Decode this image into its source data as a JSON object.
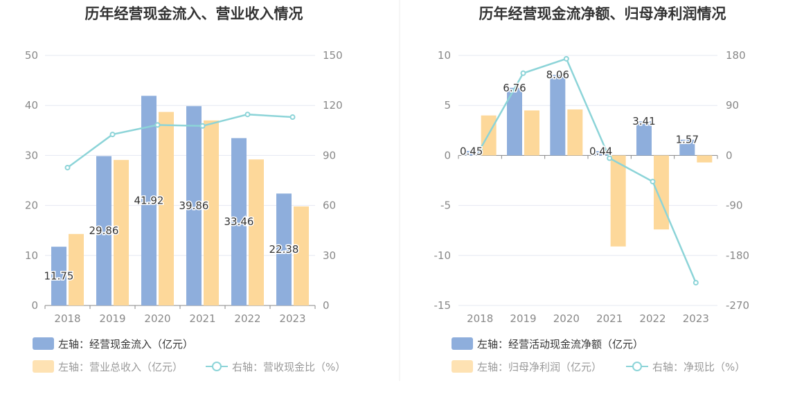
{
  "colors": {
    "bar_primary": "#8eaedc",
    "bar_secondary": "#fdd89a",
    "line": "#8cd4d8",
    "grid": "#e4e8f2",
    "axis": "#888888",
    "text": "#333333",
    "legend_secondary_text": "#999999"
  },
  "chart_data": [
    {
      "type": "bar",
      "title": "历年经营现金流入、营业收入情况",
      "categories": [
        "2018",
        "2019",
        "2020",
        "2021",
        "2022",
        "2023"
      ],
      "y_left": {
        "ticks": [
          "0",
          "10",
          "20",
          "30",
          "40",
          "50"
        ],
        "ylim": [
          0,
          50
        ]
      },
      "y_right": {
        "ticks": [
          "0",
          "30",
          "60",
          "90",
          "120",
          "150"
        ],
        "ylim": [
          0,
          150
        ]
      },
      "series": [
        {
          "name": "左轴：经营现金流入（亿元）",
          "kind": "bar",
          "axis": "left",
          "color": "#8eaedc",
          "values": [
            11.75,
            29.86,
            41.92,
            39.86,
            33.46,
            22.38
          ],
          "labels": [
            "11.75",
            "29.86",
            "41.92",
            "39.86",
            "33.46",
            "22.38"
          ]
        },
        {
          "name": "左轴：营业总收入（亿元）",
          "kind": "bar",
          "axis": "left",
          "color": "#fdd89a",
          "values": [
            14.3,
            29.1,
            38.7,
            37.0,
            29.2,
            19.8
          ]
        },
        {
          "name": "右轴：营收现金比（%）",
          "kind": "line",
          "axis": "right",
          "color": "#8cd4d8",
          "values": [
            82.7,
            102.6,
            108.3,
            107.7,
            114.6,
            113.0
          ]
        }
      ],
      "grid": true,
      "legend_position": "bottom-left"
    },
    {
      "type": "bar",
      "title": "历年经营现金流净额、归母净利润情况",
      "categories": [
        "2018",
        "2019",
        "2020",
        "2021",
        "2022",
        "2023"
      ],
      "y_left": {
        "ticks": [
          "-15",
          "-10",
          "-5",
          "0",
          "5",
          "10"
        ],
        "ylim": [
          -15,
          10
        ]
      },
      "y_right": {
        "ticks": [
          "-270",
          "-180",
          "-90",
          "0",
          "90",
          "180"
        ],
        "ylim": [
          -270,
          180
        ]
      },
      "series": [
        {
          "name": "左轴：经营活动现金流净额（亿元）",
          "kind": "bar",
          "axis": "left",
          "color": "#8eaedc",
          "values": [
            0.45,
            6.76,
            8.06,
            0.44,
            3.41,
            1.57
          ],
          "labels": [
            "0.45",
            "6.76",
            "8.06",
            "0.44",
            "3.41",
            "1.57"
          ]
        },
        {
          "name": "左轴：归母净利润（亿元）",
          "kind": "bar",
          "axis": "left",
          "color": "#fdd89a",
          "values": [
            4.0,
            4.5,
            4.6,
            -9.1,
            -7.4,
            -0.7
          ]
        },
        {
          "name": "右轴：净现比（%）",
          "kind": "line",
          "axis": "right",
          "color": "#8cd4d8",
          "values": [
            11,
            148,
            174,
            -5,
            -47,
            -229
          ]
        }
      ],
      "grid": true,
      "legend_position": "bottom-left"
    }
  ]
}
